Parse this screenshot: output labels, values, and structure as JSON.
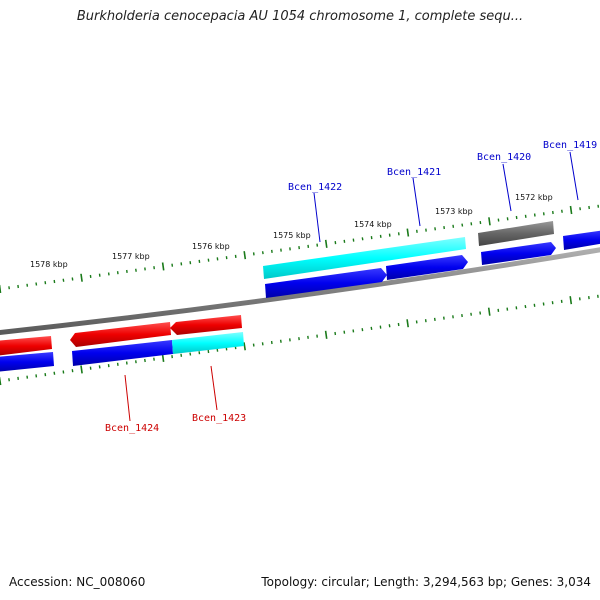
{
  "title": "Burkholderia cenocepacia AU 1054 chromosome 1, complete sequ...",
  "footer": {
    "accession_text": "Accession: NC_008060",
    "stats_text": "Topology: circular; Length: 3,294,563 bp; Genes: 3,034"
  },
  "ticks": [
    "1578 kbp",
    "1577 kbp",
    "1576 kbp",
    "1575 kbp",
    "1574 kbp",
    "1573 kbp",
    "1572 kbp"
  ],
  "gene_labels": [
    {
      "text": "Bcen_1419",
      "strand": "forward"
    },
    {
      "text": "Bcen_1420",
      "strand": "forward"
    },
    {
      "text": "Bcen_1421",
      "strand": "forward"
    },
    {
      "text": "Bcen_1422",
      "strand": "forward"
    },
    {
      "text": "Bcen_1423",
      "strand": "reverse"
    },
    {
      "text": "Bcen_1424",
      "strand": "reverse"
    }
  ],
  "colors": {
    "forward_label": "#0000cc",
    "reverse_label": "#cc0000",
    "cds": "#0000ee",
    "rna": "#00ffff",
    "reverse_cds": "#ee0000",
    "other": "#666666",
    "tick": "#1a7a1a",
    "backbone": "#808080"
  }
}
